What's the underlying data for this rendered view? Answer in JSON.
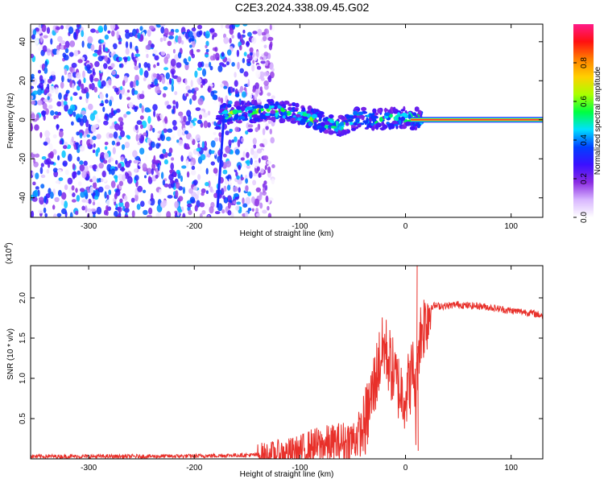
{
  "title": "C2E3.2024.338.09.45.G02",
  "chart_data": [
    {
      "type": "heatmap",
      "xlabel": "Height of straight line (km)",
      "ylabel": "Frequency (Hz)",
      "xlim": [
        -355,
        130
      ],
      "ylim": [
        -50,
        49
      ],
      "xticks": [
        -300,
        -200,
        -100,
        0,
        100
      ],
      "yticks": [
        -40,
        -20,
        0,
        20,
        40
      ],
      "colorbar": {
        "label": "Normalized spectral amplitude",
        "range": [
          0,
          1
        ],
        "ticks": [
          0.0,
          0.2,
          0.4,
          0.6,
          0.8
        ],
        "tick_labels": [
          "0.0",
          "0.2",
          "0.4",
          "0.6",
          "0.8"
        ],
        "colors": [
          "#ffffff",
          "#d8b6ff",
          "#8a2be2",
          "#3b10ff",
          "#0040ff",
          "#00e0ff",
          "#00ff40",
          "#aaff00",
          "#ffd000",
          "#ff8000",
          "#ff1010",
          "#ff1a88"
        ]
      },
      "features": [
        {
          "region": "noise",
          "x_range": [
            -355,
            -145
          ],
          "freq_range": [
            -50,
            49
          ],
          "typical_amplitude": 0.15
        },
        {
          "region": "signal-track",
          "points": [
            [
              -175,
              3
            ],
            [
              -150,
              4
            ],
            [
              -125,
              5
            ],
            [
              -100,
              3
            ],
            [
              -80,
              -1
            ],
            [
              -60,
              -3
            ],
            [
              -45,
              1
            ],
            [
              -25,
              0
            ],
            [
              -5,
              1
            ],
            [
              10,
              0.5
            ],
            [
              130,
              0
            ]
          ]
        },
        {
          "region": "tone",
          "x_range": [
            15,
            130
          ],
          "freq": 0,
          "amplitude": 0.95
        }
      ]
    },
    {
      "type": "line",
      "xlabel": "Height of straight line (km)",
      "ylabel": "SNR (10 * v/v)",
      "y_multiplier_label": "(x10",
      "y_multiplier_exponent": "4",
      "xlim": [
        -355,
        130
      ],
      "ylim": [
        0,
        24000
      ],
      "xticks": [
        -300,
        -200,
        -100,
        0,
        100
      ],
      "yticks": [
        5000,
        10000,
        15000,
        20000
      ],
      "ytick_labels": [
        "0.5",
        "1.0",
        "1.5",
        "2.0"
      ],
      "color": "#e8302a",
      "series": [
        {
          "x": [
            -355,
            -300,
            -250,
            -200,
            -160,
            -130,
            -110,
            -100,
            -90,
            -80,
            -70,
            -60,
            -50,
            -45,
            -40,
            -35,
            -30,
            -25,
            -20,
            -15,
            -10,
            -5,
            0,
            5,
            8,
            10,
            11,
            12,
            15,
            20,
            25,
            30,
            40,
            50,
            60,
            70,
            80,
            90,
            100,
            110,
            120,
            130
          ],
          "values": [
            300,
            300,
            300,
            350,
            450,
            500,
            700,
            900,
            1500,
            1700,
            1800,
            2000,
            2300,
            3000,
            3500,
            6000,
            9000,
            12000,
            14000,
            12000,
            10000,
            8500,
            8000,
            10000,
            11500,
            5000,
            11500,
            14000,
            16000,
            17500,
            19000,
            19000,
            19000,
            19200,
            19000,
            19000,
            18800,
            18600,
            18400,
            18300,
            18100,
            17800
          ]
        }
      ],
      "spikes": [
        {
          "x": 11,
          "y": 24000
        },
        {
          "x": 12,
          "y": 1000
        }
      ]
    }
  ]
}
